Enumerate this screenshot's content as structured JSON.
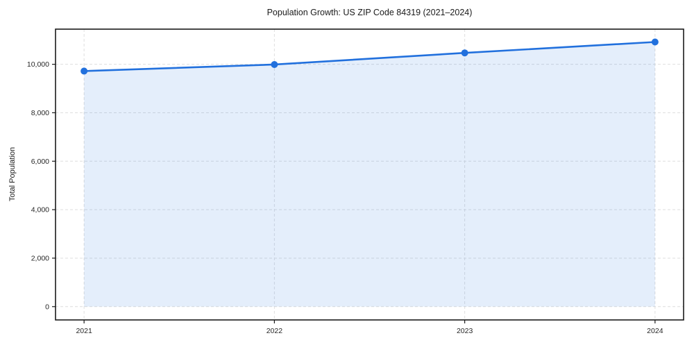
{
  "chart_data": {
    "type": "line",
    "title": "Population Growth: US ZIP Code 84319 (2021–2024)",
    "xlabel": "",
    "ylabel": "Total Population",
    "categories": [
      2021,
      2022,
      2023,
      2024
    ],
    "series": [
      {
        "name": "Total Population",
        "values": [
          9720,
          9990,
          10470,
          10920
        ]
      }
    ],
    "x_tick_labels": [
      "2021",
      "2022",
      "2023",
      "2024"
    ],
    "yticks": [
      0,
      2000,
      4000,
      6000,
      8000,
      10000
    ],
    "y_tick_labels": [
      "0",
      "2,000",
      "4,000",
      "6,000",
      "8,000",
      "10,000"
    ],
    "ylim": [
      -550,
      11450
    ],
    "xlim": [
      2020.85,
      2024.15
    ],
    "grid": true,
    "grid_style": "dashed",
    "legend": "none",
    "area_fill": true,
    "fill_baseline": 0,
    "colors": {
      "line": "#2170dd",
      "marker": "#2170dd",
      "fill": "#2170dd",
      "fill_opacity": 0.12,
      "grid": "#dedede",
      "spine": "#1a1a1a",
      "text": "#262626",
      "background": "#ffffff"
    }
  }
}
